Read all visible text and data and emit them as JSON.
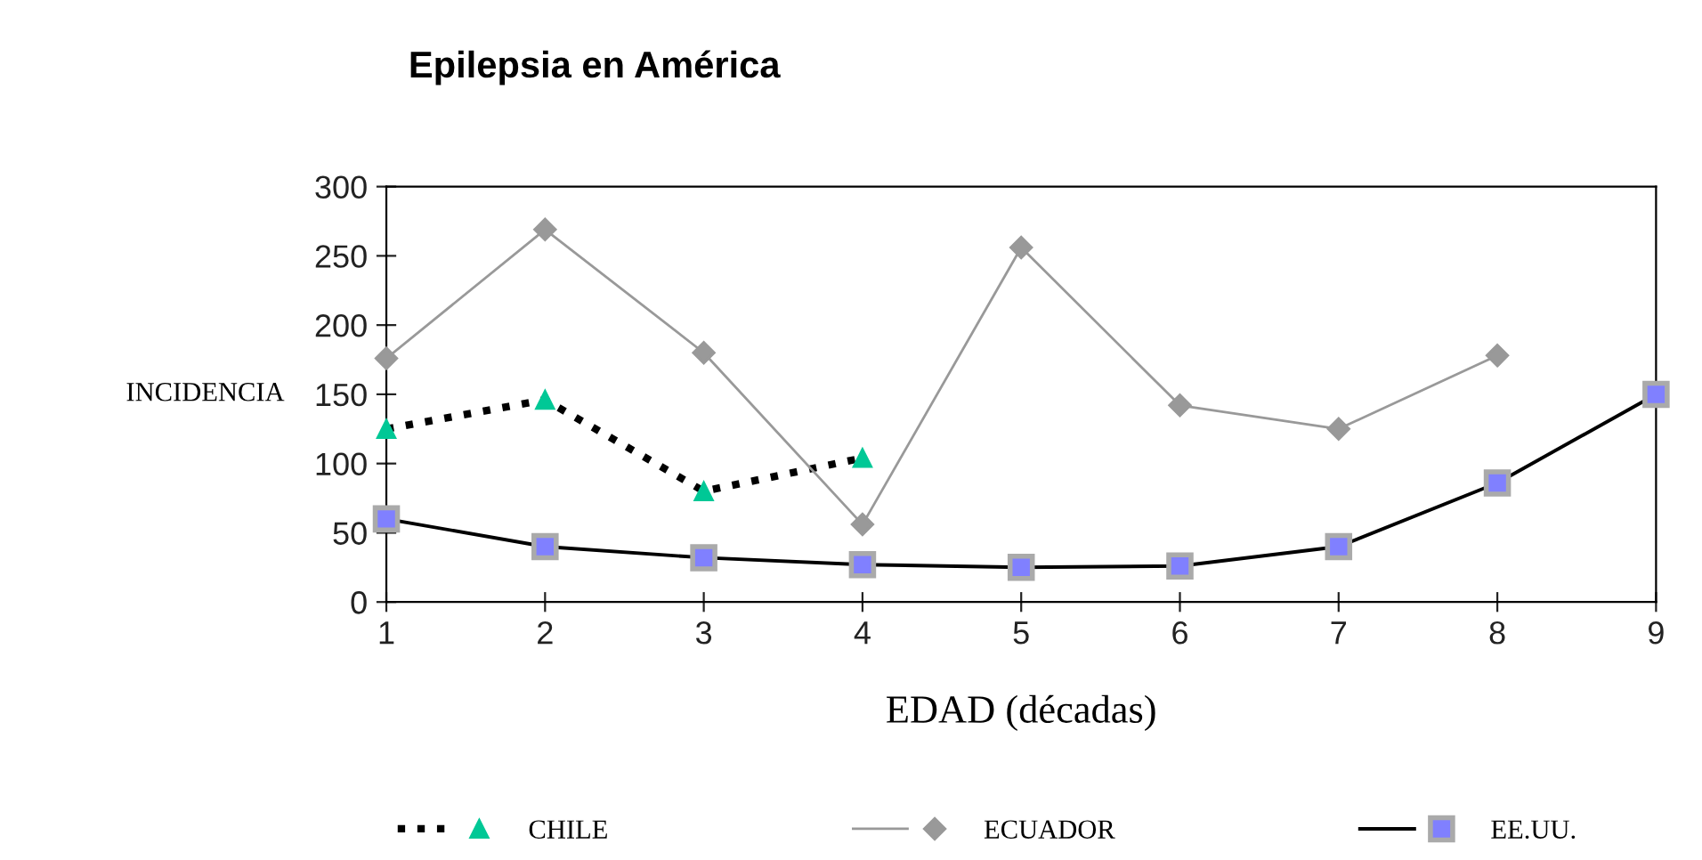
{
  "chart_data": {
    "type": "line",
    "title": "Epilepsia en América",
    "xlabel": "EDAD (décadas)",
    "ylabel": "INCIDENCIA",
    "x": [
      1,
      2,
      3,
      4,
      5,
      6,
      7,
      8,
      9
    ],
    "series": [
      {
        "name": "CHILE",
        "color": "#000000",
        "marker": "triangle",
        "line_style": "dotted",
        "colors": [
          "#00c896",
          "#00c896",
          "#00c896",
          "#00c896",
          null,
          null,
          null,
          null,
          null
        ],
        "values": [
          125,
          146,
          80,
          104,
          null,
          null,
          null,
          null,
          null
        ]
      },
      {
        "name": "ECUADOR",
        "color": "#999999",
        "marker": "diamond",
        "line_style": "solid",
        "colors": [
          "#999999",
          "#999999",
          "#999999",
          "#999999",
          "#999999",
          "#999999",
          "#999999",
          "#999999",
          null
        ],
        "values": [
          176,
          269,
          180,
          56,
          256,
          142,
          125,
          178,
          null
        ]
      },
      {
        "name": "EE.UU.",
        "color": "#000000",
        "marker": "square",
        "line_style": "solid",
        "colors": [
          "#8080ff",
          "#8080ff",
          "#8080ff",
          "#8080ff",
          "#8080ff",
          "#8080ff",
          "#8080ff",
          "#8080ff",
          "#8080ff"
        ],
        "values": [
          60,
          40,
          32,
          27,
          25,
          26,
          40,
          86,
          150
        ]
      }
    ],
    "xlim": [
      1,
      9
    ],
    "xticks": [
      1,
      2,
      3,
      4,
      5,
      6,
      7,
      8,
      9
    ],
    "ylim": [
      0,
      300
    ],
    "yticks": [
      0,
      50,
      100,
      150,
      200,
      250,
      300
    ],
    "grid": false,
    "legend": "bottom"
  }
}
